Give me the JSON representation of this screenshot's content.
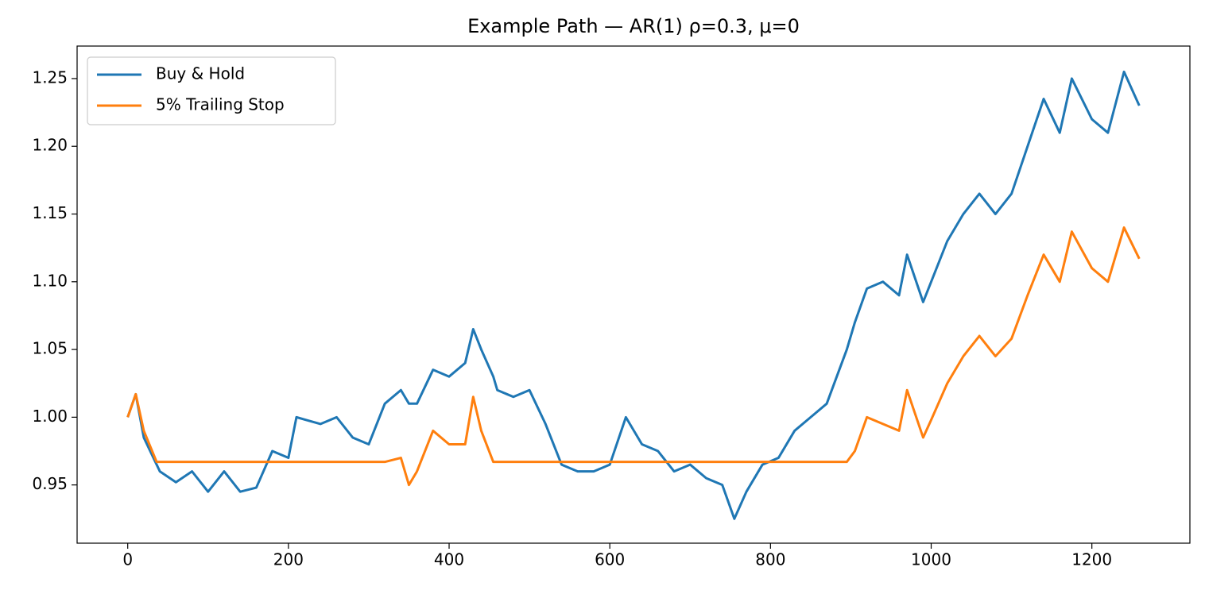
{
  "chart_data": {
    "type": "line",
    "title": "Example Path — AR(1) ρ=0.3, μ=0",
    "x": [
      0,
      10,
      20,
      36,
      40,
      60,
      80,
      100,
      120,
      140,
      160,
      180,
      200,
      210,
      240,
      260,
      280,
      300,
      320,
      340,
      350,
      360,
      380,
      400,
      420,
      430,
      440,
      455,
      460,
      480,
      500,
      520,
      540,
      560,
      580,
      600,
      620,
      640,
      660,
      680,
      700,
      720,
      740,
      755,
      770,
      790,
      810,
      830,
      850,
      870,
      895,
      905,
      920,
      940,
      960,
      970,
      990,
      1000,
      1020,
      1040,
      1060,
      1080,
      1100,
      1120,
      1140,
      1160,
      1175,
      1200,
      1220,
      1240,
      1259
    ],
    "series": [
      {
        "name": "Buy & Hold",
        "color": "#1f77b4",
        "values": [
          1.0,
          1.017,
          0.985,
          0.965,
          0.96,
          0.952,
          0.96,
          0.945,
          0.96,
          0.945,
          0.948,
          0.975,
          0.97,
          1.0,
          0.995,
          1.0,
          0.985,
          0.98,
          1.01,
          1.02,
          1.01,
          1.01,
          1.035,
          1.03,
          1.04,
          1.065,
          1.05,
          1.03,
          1.02,
          1.015,
          1.02,
          0.995,
          0.965,
          0.96,
          0.96,
          0.965,
          1.0,
          0.98,
          0.975,
          0.96,
          0.965,
          0.955,
          0.95,
          0.925,
          0.945,
          0.965,
          0.97,
          0.99,
          1.0,
          1.01,
          1.05,
          1.07,
          1.095,
          1.1,
          1.09,
          1.12,
          1.085,
          1.1,
          1.13,
          1.15,
          1.165,
          1.15,
          1.165,
          1.2,
          1.235,
          1.21,
          1.25,
          1.22,
          1.21,
          1.255,
          1.23
        ]
      },
      {
        "name": "5% Trailing Stop",
        "color": "#ff7f0e",
        "values": [
          1.0,
          1.017,
          0.99,
          0.967,
          0.967,
          0.967,
          0.967,
          0.967,
          0.967,
          0.967,
          0.967,
          0.967,
          0.967,
          0.967,
          0.967,
          0.967,
          0.967,
          0.967,
          0.967,
          0.97,
          0.95,
          0.96,
          0.99,
          0.98,
          0.98,
          1.015,
          0.99,
          0.967,
          0.967,
          0.967,
          0.967,
          0.967,
          0.967,
          0.967,
          0.967,
          0.967,
          0.967,
          0.967,
          0.967,
          0.967,
          0.967,
          0.967,
          0.967,
          0.967,
          0.967,
          0.967,
          0.967,
          0.967,
          0.967,
          0.967,
          0.967,
          0.975,
          1.0,
          0.995,
          0.99,
          1.02,
          0.985,
          0.998,
          1.025,
          1.045,
          1.06,
          1.045,
          1.058,
          1.09,
          1.12,
          1.1,
          1.137,
          1.11,
          1.1,
          1.14,
          1.117
        ]
      }
    ],
    "xlim": [
      -63,
      1322
    ],
    "ylim": [
      0.907,
      1.274
    ],
    "xticks": [
      0,
      200,
      400,
      600,
      800,
      1000,
      1200
    ],
    "yticks": [
      0.95,
      {
        "value": 1.0,
        "label": "1.00"
      },
      1.05,
      {
        "value": 1.1,
        "label": "1.10"
      },
      1.15,
      {
        "value": 1.2,
        "label": "1.20"
      },
      1.25
    ],
    "grid": false,
    "legend": "upper left"
  }
}
